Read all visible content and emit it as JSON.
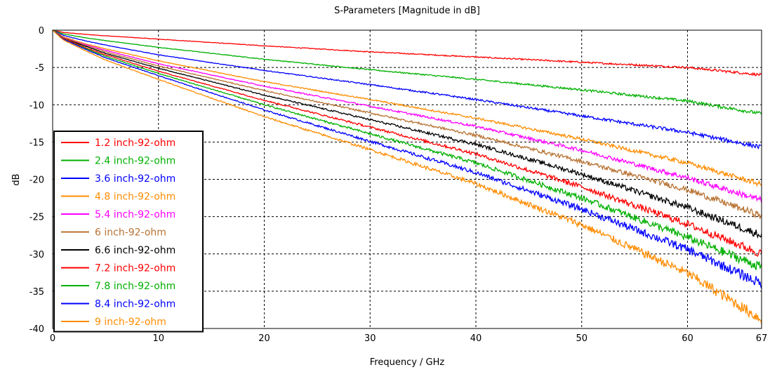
{
  "chart_data": {
    "type": "line",
    "title": "S-Parameters [Magnitude in dB]",
    "xlabel": "Frequency / GHz",
    "ylabel": "dB",
    "xlim": [
      0,
      67
    ],
    "ylim": [
      -40,
      0
    ],
    "xticks": [
      0,
      10,
      20,
      30,
      40,
      50,
      60,
      67
    ],
    "yticks": [
      0,
      -5,
      -10,
      -15,
      -20,
      -25,
      -30,
      -35,
      -40
    ],
    "grid": true,
    "grid_style": "dashed",
    "legend_position": "left-middle",
    "x": [
      0,
      1,
      3,
      5,
      10,
      20,
      30,
      40,
      50,
      60,
      67
    ],
    "series": [
      {
        "name": "1.2 inch-92-ohm",
        "color": "#ff0000",
        "values": [
          0,
          -0.3,
          -0.55,
          -0.75,
          -1.2,
          -2.1,
          -2.9,
          -3.6,
          -4.3,
          -5.0,
          -6.0
        ]
      },
      {
        "name": "2.4 inch-92-ohm",
        "color": "#00b000",
        "values": [
          0,
          -0.5,
          -1.0,
          -1.4,
          -2.3,
          -3.9,
          -5.3,
          -6.6,
          -8.0,
          -9.5,
          -11.2
        ]
      },
      {
        "name": "3.6 inch-92-ohm",
        "color": "#0000ff",
        "values": [
          0,
          -0.7,
          -1.4,
          -2.0,
          -3.3,
          -5.4,
          -7.3,
          -9.3,
          -11.5,
          -13.7,
          -15.7
        ]
      },
      {
        "name": "4.8 inch-92-ohm",
        "color": "#ff8c00",
        "values": [
          0,
          -0.9,
          -1.8,
          -2.5,
          -4.1,
          -6.9,
          -9.3,
          -11.8,
          -14.6,
          -17.8,
          -20.7
        ]
      },
      {
        "name": "5.4 inch-92-ohm",
        "color": "#ff00ff",
        "values": [
          0,
          -1.0,
          -1.9,
          -2.7,
          -4.5,
          -7.5,
          -10.2,
          -12.9,
          -16.1,
          -19.8,
          -22.8
        ]
      },
      {
        "name": "6 inch-92-ohm",
        "color": "#b87333",
        "values": [
          0,
          -1.0,
          -2.0,
          -2.9,
          -4.8,
          -8.1,
          -11.1,
          -14.1,
          -17.6,
          -21.4,
          -24.9
        ]
      },
      {
        "name": "6.6 inch-92-ohm",
        "color": "#000000",
        "values": [
          0,
          -1.1,
          -2.1,
          -3.1,
          -5.1,
          -8.7,
          -12.0,
          -15.3,
          -19.3,
          -23.8,
          -27.5
        ]
      },
      {
        "name": "7.2 inch-92-ohm",
        "color": "#ff0000",
        "values": [
          0,
          -1.1,
          -2.3,
          -3.3,
          -5.5,
          -9.4,
          -13.0,
          -16.6,
          -21.0,
          -26.0,
          -30.0
        ]
      },
      {
        "name": "7.8 inch-92-ohm",
        "color": "#00b000",
        "values": [
          0,
          -1.2,
          -2.4,
          -3.5,
          -5.8,
          -10.0,
          -13.9,
          -17.8,
          -22.5,
          -27.8,
          -31.8
        ]
      },
      {
        "name": "8.4 inch-92-ohm",
        "color": "#0000ff",
        "values": [
          0,
          -1.2,
          -2.5,
          -3.7,
          -6.1,
          -10.7,
          -14.9,
          -19.1,
          -24.0,
          -29.4,
          -34.0
        ]
      },
      {
        "name": "9 inch-92-ohm",
        "color": "#ff8c00",
        "values": [
          0,
          -1.3,
          -2.7,
          -4.0,
          -6.6,
          -11.6,
          -16.0,
          -20.6,
          -26.1,
          -32.6,
          -38.8
        ]
      }
    ]
  }
}
